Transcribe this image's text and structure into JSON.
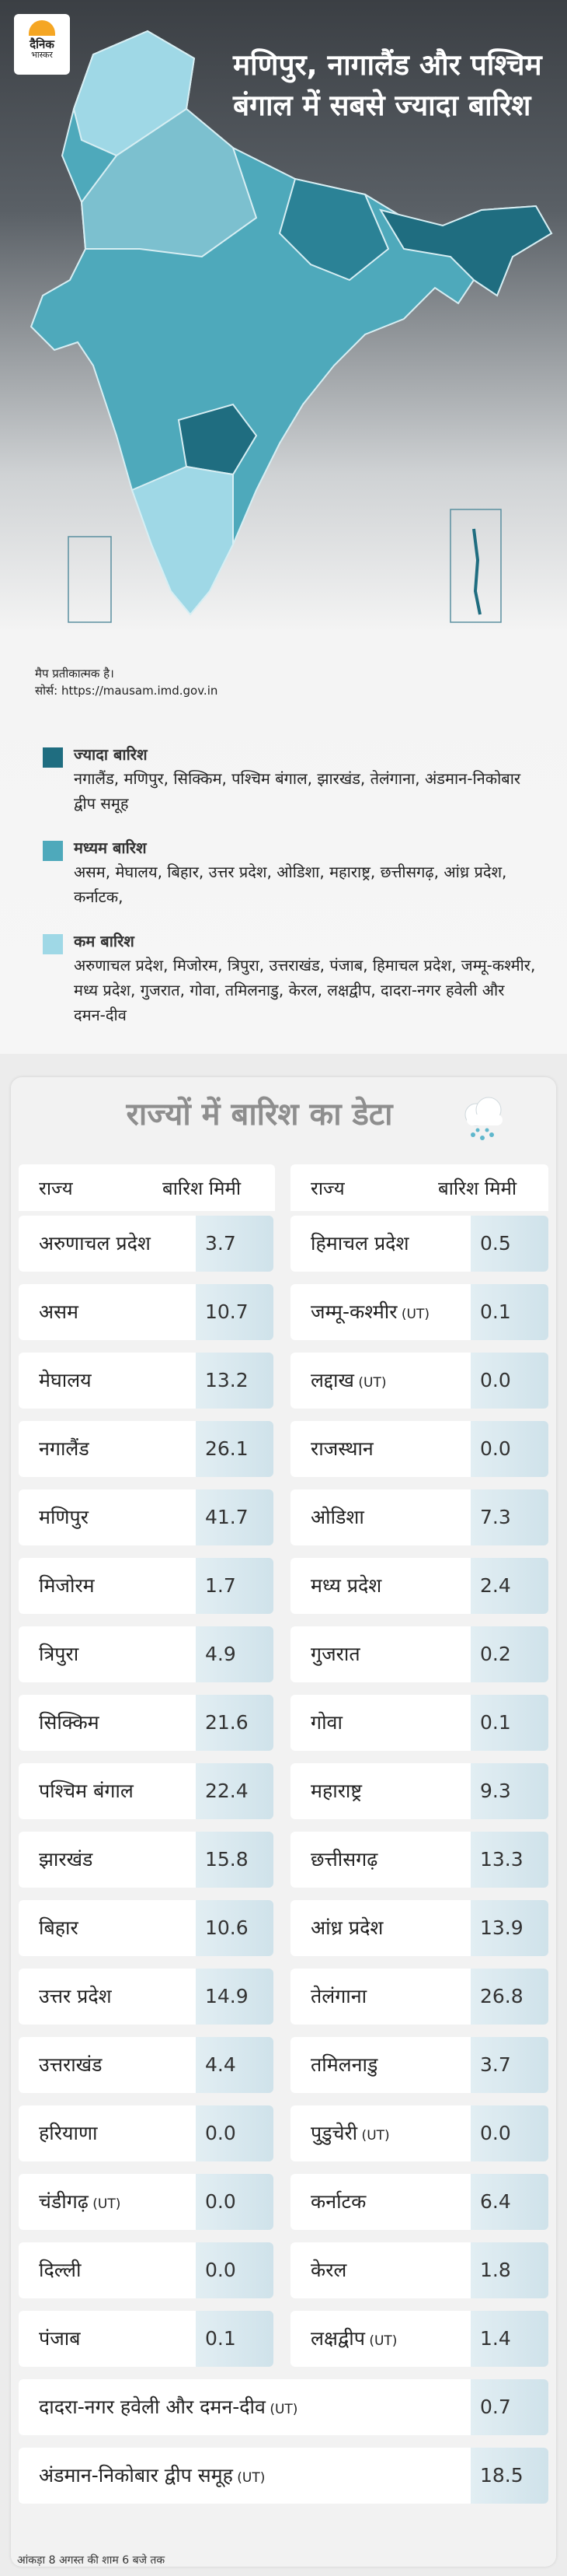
{
  "brand": {
    "logo_line1": "दैनिक",
    "logo_line2": "भास्कर"
  },
  "headline": "मणिपुर, नागालैंड और पश्चिम बंगाल में सबसे ज्यादा बारिश",
  "map": {
    "note": "मैप प्रतीकात्मक है।",
    "source": "सोर्स: https://mausam.imd.gov.in"
  },
  "legend": [
    {
      "title": "ज्यादा बारिश",
      "states": "नगालैंड, मणिपुर, सिक्किम, पश्चिम बंगाल, झारखंड, तेलंगाना, अंडमान-निकोबार द्वीप समूह",
      "color": "#1f6d80"
    },
    {
      "title": "मध्यम बारिश",
      "states": "असम, मेघालय, बिहार, उत्तर प्रदेश, ओडिशा, महाराष्ट्र, छत्तीसगढ़, आंध्र प्रदेश, कर्नाटक,",
      "color": "#4ea9bb"
    },
    {
      "title": "कम बारिश",
      "states": "अरुणाचल प्रदेश, मिजोरम, त्रिपुरा, उत्तराखंड, पंजाब, हिमाचल प्रदेश, जम्मू-कश्मीर, मध्य प्रदेश, गुजरात, गोवा, तमिलनाडु, केरल, लक्षद्वीप, दादरा-नगर हवेली और दमन-दीव",
      "color": "#9fd8e6"
    }
  ],
  "table": {
    "title": "राज्यों में बारिश का डेटा",
    "col_state": "राज्य",
    "col_rain": "बारिश मिमी",
    "left": [
      {
        "name": "अरुणाचल प्रदेश",
        "value": "3.7"
      },
      {
        "name": "असम",
        "value": "10.7"
      },
      {
        "name": "मेघालय",
        "value": "13.2"
      },
      {
        "name": "नगालैंड",
        "value": "26.1"
      },
      {
        "name": "मणिपुर",
        "value": "41.7"
      },
      {
        "name": "मिजोरम",
        "value": "1.7"
      },
      {
        "name": "त्रिपुरा",
        "value": "4.9"
      },
      {
        "name": "सिक्किम",
        "value": "21.6"
      },
      {
        "name": "पश्चिम बंगाल",
        "value": "22.4"
      },
      {
        "name": "झारखंड",
        "value": "15.8"
      },
      {
        "name": "बिहार",
        "value": "10.6"
      },
      {
        "name": "उत्तर प्रदेश",
        "value": "14.9"
      },
      {
        "name": "उत्तराखंड",
        "value": "4.4"
      },
      {
        "name": "हरियाणा",
        "value": "0.0"
      },
      {
        "name": "चंडीगढ़",
        "ut": "(UT)",
        "value": "0.0"
      },
      {
        "name": "दिल्ली",
        "value": "0.0"
      },
      {
        "name": "पंजाब",
        "value": "0.1"
      }
    ],
    "right": [
      {
        "name": "हिमाचल प्रदेश",
        "value": "0.5"
      },
      {
        "name": "जम्मू-कश्मीर",
        "ut": "(UT)",
        "value": "0.1"
      },
      {
        "name": "लद्दाख",
        "ut": "(UT)",
        "value": "0.0"
      },
      {
        "name": "राजस्थान",
        "value": "0.0"
      },
      {
        "name": "ओडिशा",
        "value": "7.3"
      },
      {
        "name": "मध्य प्रदेश",
        "value": "2.4"
      },
      {
        "name": "गुजरात",
        "value": "0.2"
      },
      {
        "name": "गोवा",
        "value": "0.1"
      },
      {
        "name": "महाराष्ट्र",
        "value": "9.3"
      },
      {
        "name": "छत्तीसगढ़",
        "value": "13.3"
      },
      {
        "name": "आंध्र प्रदेश",
        "value": "13.9"
      },
      {
        "name": "तेलंगाना",
        "value": "26.8"
      },
      {
        "name": "तमिलनाडु",
        "value": "3.7"
      },
      {
        "name": "पुडुचेरी",
        "ut": "(UT)",
        "value": "0.0"
      },
      {
        "name": "कर्नाटक",
        "value": "6.4"
      },
      {
        "name": "केरल",
        "value": "1.8"
      },
      {
        "name": "लक्षद्वीप",
        "ut": "(UT)",
        "value": "1.4"
      }
    ],
    "full": [
      {
        "name": "दादरा-नगर हवेली और दमन-दीव",
        "ut": "(UT)",
        "value": "0.7"
      },
      {
        "name": "अंडमान-निकोबार द्वीप समूह",
        "ut": "(UT)",
        "value": "18.5"
      }
    ]
  },
  "footnote": "आंकड़ा 8 अगस्त की शाम 6 बजे तक"
}
